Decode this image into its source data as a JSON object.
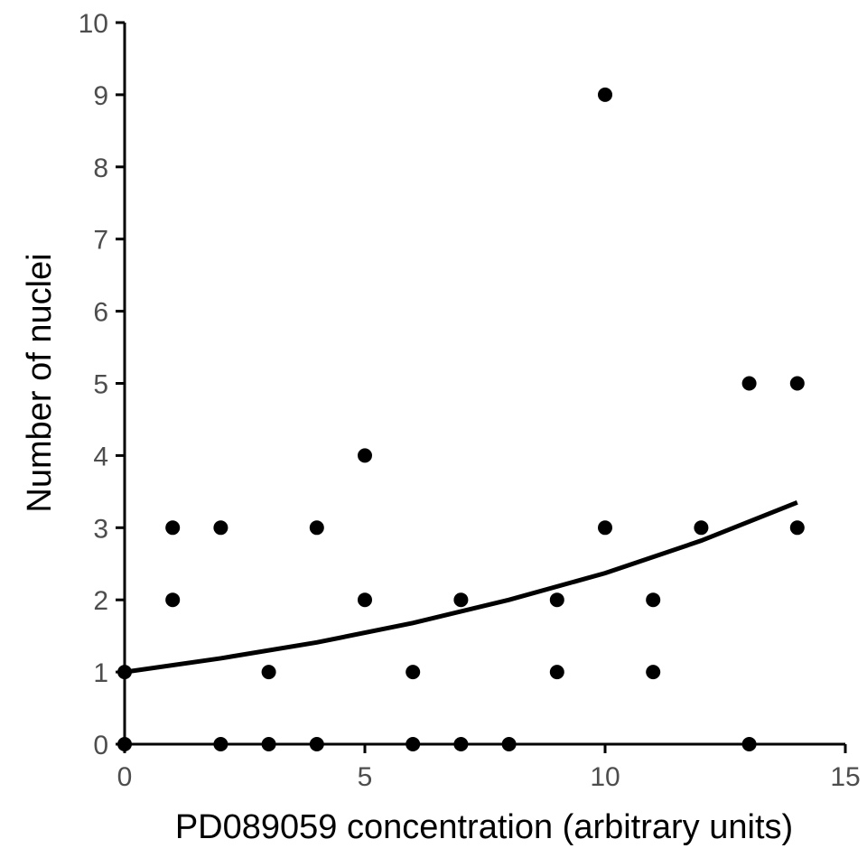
{
  "chart_data": {
    "type": "scatter",
    "title": "",
    "xlabel": "PD089059 concentration (arbitrary units)",
    "ylabel": "Number of nuclei",
    "xlim": [
      0,
      15
    ],
    "ylim": [
      0,
      10
    ],
    "x_ticks": [
      "0",
      "5",
      "10",
      "15"
    ],
    "y_ticks": [
      "0",
      "1",
      "2",
      "3",
      "4",
      "5",
      "6",
      "7",
      "8",
      "9",
      "10"
    ],
    "grid": false,
    "legend": "none",
    "colors": {
      "points": "#000000",
      "trend": "#000000",
      "axis": "#000000",
      "tick_text": "#4d4d4d"
    },
    "points": [
      {
        "x": 0,
        "y": 0
      },
      {
        "x": 0,
        "y": 1
      },
      {
        "x": 1,
        "y": 2
      },
      {
        "x": 1,
        "y": 3
      },
      {
        "x": 2,
        "y": 0
      },
      {
        "x": 2,
        "y": 3
      },
      {
        "x": 3,
        "y": 0
      },
      {
        "x": 3,
        "y": 1
      },
      {
        "x": 4,
        "y": 0
      },
      {
        "x": 4,
        "y": 3
      },
      {
        "x": 5,
        "y": 2
      },
      {
        "x": 5,
        "y": 4
      },
      {
        "x": 6,
        "y": 0
      },
      {
        "x": 6,
        "y": 1
      },
      {
        "x": 7,
        "y": 0
      },
      {
        "x": 7,
        "y": 2
      },
      {
        "x": 8,
        "y": 0
      },
      {
        "x": 9,
        "y": 1
      },
      {
        "x": 9,
        "y": 2
      },
      {
        "x": 10,
        "y": 3
      },
      {
        "x": 10,
        "y": 9
      },
      {
        "x": 11,
        "y": 1
      },
      {
        "x": 11,
        "y": 2
      },
      {
        "x": 12,
        "y": 3
      },
      {
        "x": 13,
        "y": 0
      },
      {
        "x": 13,
        "y": 5
      },
      {
        "x": 14,
        "y": 3
      },
      {
        "x": 14,
        "y": 5
      }
    ],
    "trend_line": {
      "type": "exponential",
      "x": [
        0,
        2,
        4,
        6,
        8,
        10,
        12,
        14
      ],
      "y": [
        1.0,
        1.19,
        1.41,
        1.68,
        2.0,
        2.37,
        2.82,
        3.35
      ]
    }
  }
}
